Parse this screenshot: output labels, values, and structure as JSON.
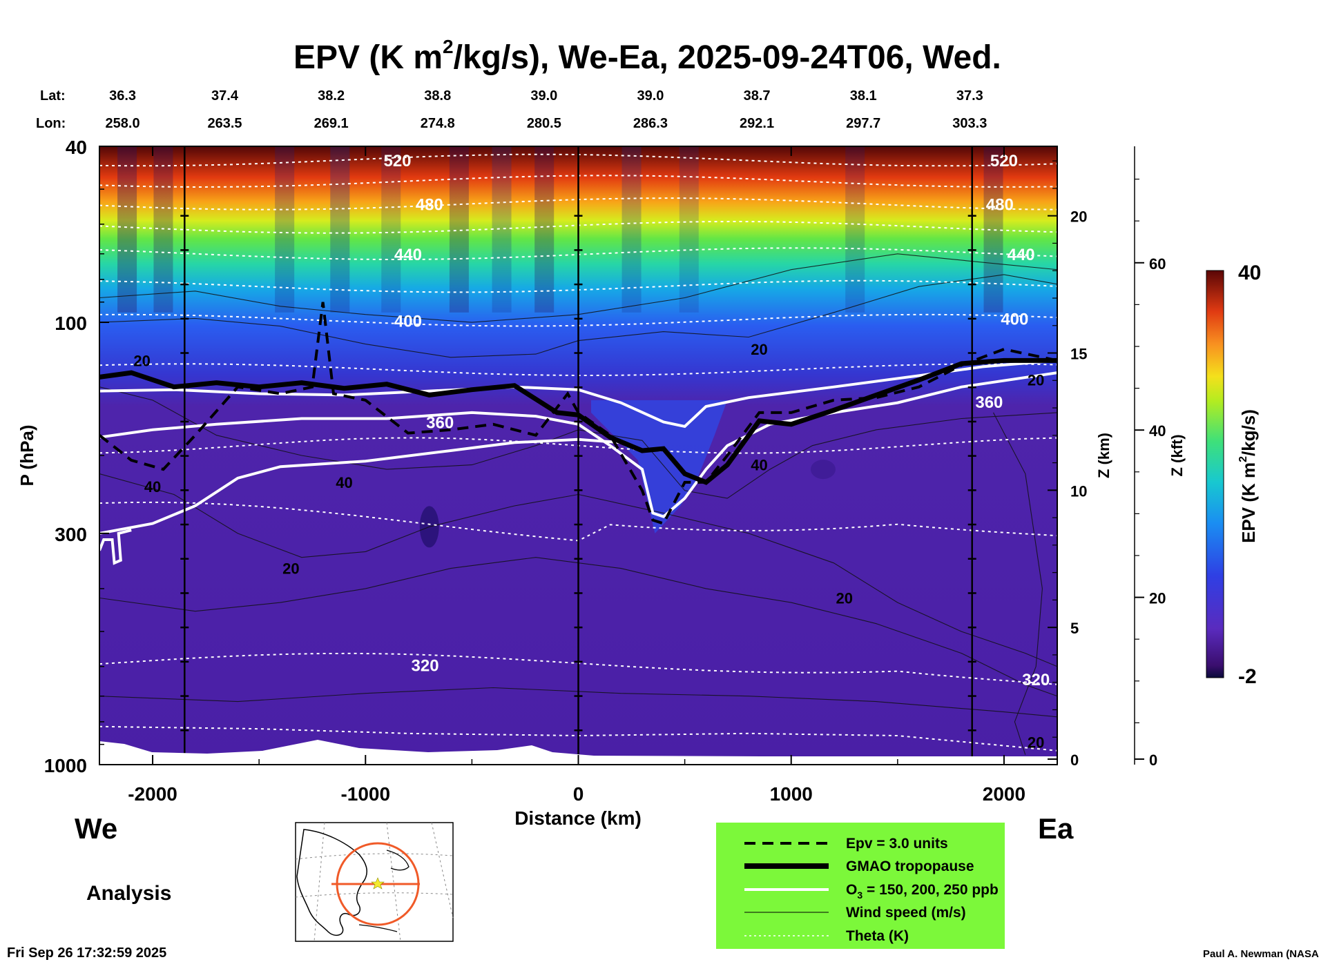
{
  "chart_data": {
    "type": "heatmap",
    "title_main": "EPV (K m",
    "title_sup": "2",
    "title_rest": "/kg/s), We-Ea, 2025-09-24T06, Wed.",
    "header": {
      "lat_label": "Lat:",
      "lon_label": "Lon:",
      "lat": [
        "36.3",
        "37.4",
        "38.2",
        "38.8",
        "39.0",
        "39.0",
        "38.7",
        "38.1",
        "37.3"
      ],
      "lon": [
        "258.0",
        "263.5",
        "269.1",
        "274.8",
        "280.5",
        "286.3",
        "292.1",
        "297.7",
        "303.3"
      ],
      "distance_km": [
        -2180,
        -1700,
        -1200,
        -700,
        -200,
        300,
        800,
        1300,
        1800
      ]
    },
    "x_axis": {
      "label": "Distance (km)",
      "range": [
        -2250,
        2250
      ],
      "ticks": [
        -2000,
        -1000,
        0,
        1000,
        2000
      ],
      "tick_labels": [
        "-2000",
        "-1000",
        "0",
        "1000",
        "2000"
      ],
      "vertical_lines_km": [
        -1850,
        0,
        1850
      ]
    },
    "y_axis": {
      "label": "P (hPa)",
      "scale": "log",
      "range": [
        1000,
        40
      ],
      "ticks": [
        40,
        100,
        300,
        1000
      ],
      "tick_labels": [
        "40",
        "100",
        "300",
        "1000"
      ]
    },
    "z_km_axis": {
      "label": "Z (km)",
      "ticks": [
        0,
        5,
        10,
        15,
        20
      ],
      "tick_labels": [
        "0",
        "5",
        "10",
        "15",
        "20"
      ]
    },
    "z_kft_axis": {
      "label": "Z (kft)",
      "ticks": [
        0,
        20,
        40,
        60
      ],
      "tick_labels": [
        "0",
        "20",
        "40",
        "60"
      ]
    },
    "colorbar": {
      "label_main": "EPV (K m",
      "label_sup": "2",
      "label_rest": "/kg/s)",
      "min": -2,
      "max": 40,
      "min_label": "-2",
      "max_label": "40"
    },
    "theta_levels": [
      {
        "value": 320,
        "pressure_hpa": 590
      },
      {
        "value": 340,
        "pressure_hpa": 290
      },
      {
        "value": 360,
        "pressure_hpa": 190
      },
      {
        "value": 380,
        "pressure_hpa": 128
      },
      {
        "value": 400,
        "pressure_hpa": 99
      },
      {
        "value": 420,
        "pressure_hpa": 83
      },
      {
        "value": 440,
        "pressure_hpa": 70
      },
      {
        "value": 460,
        "pressure_hpa": 61
      },
      {
        "value": 480,
        "pressure_hpa": 54
      },
      {
        "value": 500,
        "pressure_hpa": 48
      },
      {
        "value": 520,
        "pressure_hpa": 43
      }
    ],
    "contour_labels": {
      "theta": [
        {
          "text": "520",
          "x_km": -850,
          "p": 43
        },
        {
          "text": "480",
          "x_km": -700,
          "p": 54
        },
        {
          "text": "440",
          "x_km": -800,
          "p": 70
        },
        {
          "text": "400",
          "x_km": -800,
          "p": 99
        },
        {
          "text": "360",
          "x_km": -650,
          "p": 168
        },
        {
          "text": "320",
          "x_km": -720,
          "p": 595
        },
        {
          "text": "520",
          "x_km": 2000,
          "p": 43
        },
        {
          "text": "480",
          "x_km": 1980,
          "p": 54
        },
        {
          "text": "440",
          "x_km": 2080,
          "p": 70
        },
        {
          "text": "400",
          "x_km": 2050,
          "p": 98
        },
        {
          "text": "360",
          "x_km": 1930,
          "p": 151
        },
        {
          "text": "320",
          "x_km": 2150,
          "p": 640
        }
      ],
      "wind": [
        {
          "text": "20",
          "x_km": -2050,
          "p": 122
        },
        {
          "text": "40",
          "x_km": -2000,
          "p": 235
        },
        {
          "text": "40",
          "x_km": -1100,
          "p": 230
        },
        {
          "text": "20",
          "x_km": -1350,
          "p": 360
        },
        {
          "text": "20",
          "x_km": 850,
          "p": 115
        },
        {
          "text": "40",
          "x_km": 850,
          "p": 210
        },
        {
          "text": "20",
          "x_km": 1250,
          "p": 420
        },
        {
          "text": "20",
          "x_km": 2150,
          "p": 135
        },
        {
          "text": "20",
          "x_km": 2150,
          "p": 890
        }
      ]
    },
    "tropopause_gmao_hpa": [
      [
        -2250,
        133
      ],
      [
        -2100,
        130
      ],
      [
        -1900,
        140
      ],
      [
        -1700,
        137
      ],
      [
        -1500,
        140
      ],
      [
        -1300,
        137
      ],
      [
        -1100,
        141
      ],
      [
        -900,
        138
      ],
      [
        -700,
        146
      ],
      [
        -500,
        142
      ],
      [
        -300,
        139
      ],
      [
        -100,
        160
      ],
      [
        0,
        162
      ],
      [
        150,
        182
      ],
      [
        300,
        195
      ],
      [
        400,
        193
      ],
      [
        500,
        220
      ],
      [
        600,
        230
      ],
      [
        700,
        210
      ],
      [
        850,
        167
      ],
      [
        1000,
        170
      ],
      [
        1200,
        158
      ],
      [
        1400,
        146
      ],
      [
        1600,
        135
      ],
      [
        1800,
        124
      ],
      [
        2000,
        122
      ],
      [
        2250,
        122
      ]
    ],
    "epv_3pvu_hpa": [
      [
        -2250,
        180
      ],
      [
        -2100,
        205
      ],
      [
        -1950,
        215
      ],
      [
        -1800,
        180
      ],
      [
        -1600,
        140
      ],
      [
        -1400,
        145
      ],
      [
        -1250,
        140
      ],
      [
        -1200,
        90
      ],
      [
        -1150,
        145
      ],
      [
        -1000,
        150
      ],
      [
        -800,
        178
      ],
      [
        -600,
        175
      ],
      [
        -400,
        170
      ],
      [
        -200,
        180
      ],
      [
        -50,
        145
      ],
      [
        0,
        160
      ],
      [
        150,
        180
      ],
      [
        300,
        240
      ],
      [
        350,
        280
      ],
      [
        400,
        285
      ],
      [
        500,
        230
      ],
      [
        600,
        230
      ],
      [
        700,
        200
      ],
      [
        850,
        160
      ],
      [
        1000,
        160
      ],
      [
        1200,
        150
      ],
      [
        1400,
        148
      ],
      [
        1600,
        140
      ],
      [
        1800,
        125
      ],
      [
        2000,
        115
      ],
      [
        2250,
        122
      ]
    ],
    "ozone_ppb_hpa": [
      {
        "ppb": 150,
        "points": [
          [
            -2250,
            143
          ],
          [
            -1900,
            142
          ],
          [
            -1500,
            145
          ],
          [
            -1100,
            146
          ],
          [
            -700,
            143
          ],
          [
            -300,
            140
          ],
          [
            0,
            142
          ],
          [
            200,
            152
          ],
          [
            400,
            168
          ],
          [
            500,
            172
          ],
          [
            600,
            155
          ],
          [
            800,
            148
          ],
          [
            1200,
            140
          ],
          [
            1600,
            132
          ],
          [
            1900,
            126
          ],
          [
            2250,
            122
          ]
        ]
      },
      {
        "ppb": 200,
        "points": [
          [
            -2250,
            182
          ],
          [
            -2000,
            175
          ],
          [
            -1700,
            170
          ],
          [
            -1300,
            165
          ],
          [
            -900,
            165
          ],
          [
            -500,
            160
          ],
          [
            -200,
            163
          ],
          [
            0,
            170
          ],
          [
            150,
            190
          ],
          [
            300,
            215
          ],
          [
            350,
            270
          ],
          [
            400,
            275
          ],
          [
            500,
            250
          ],
          [
            600,
            215
          ],
          [
            700,
            190
          ],
          [
            900,
            170
          ],
          [
            1200,
            160
          ],
          [
            1500,
            152
          ],
          [
            1800,
            140
          ],
          [
            2250,
            130
          ]
        ]
      },
      {
        "ppb": 250,
        "points": [
          [
            -2250,
            300
          ],
          [
            -2000,
            285
          ],
          [
            -1800,
            260
          ],
          [
            -1600,
            225
          ],
          [
            -1400,
            212
          ],
          [
            -1000,
            206
          ],
          [
            -600,
            195
          ],
          [
            -300,
            187
          ],
          [
            0,
            184
          ],
          [
            200,
            187
          ]
        ]
      }
    ],
    "wind_speed_note": "Wind speed contours at 20 and 40 m/s",
    "vertical_profile_dates": []
  },
  "labels": {
    "left_end": "We",
    "right_end": "Ea",
    "analysis": "Analysis",
    "timestamp": "Fri Sep 26 17:32:59 2025",
    "credit": "Paul A. Newman (NASA",
    "legend": {
      "epv": "Epv = 3.0 units",
      "tropopause": "GMAO tropopause",
      "ozone_main": "O",
      "ozone_sub": "3",
      "ozone_rest": " = 150, 200, 250 ppb",
      "wind": "Wind speed (m/s)",
      "theta": "Theta (K)"
    },
    "colors": {
      "legend_bg": "#7cf83a",
      "map_circle": "#f05a28",
      "map_star": "#f4ea2f",
      "troposphere": "#4b1fa8",
      "stratosphere_low": "#3a34d6",
      "stratosphere_high": "#5b0a0a"
    }
  }
}
